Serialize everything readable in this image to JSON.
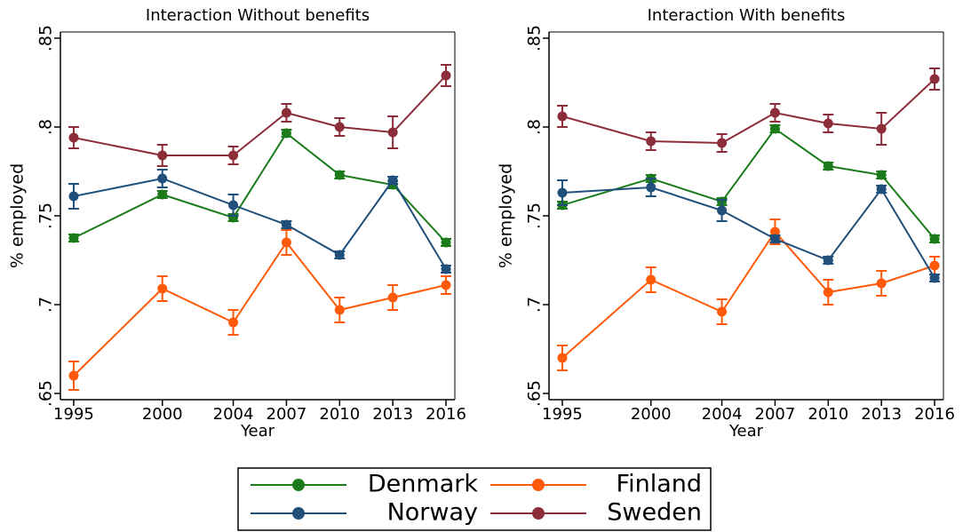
{
  "chart_data": [
    {
      "type": "line",
      "title": "Interaction Without benefits",
      "x_label": "Year",
      "y_label": "% employed",
      "x": [
        1995,
        2000,
        2004,
        2007,
        2010,
        2013,
        2016
      ],
      "xticks": [
        1995,
        2000,
        2004,
        2007,
        2010,
        2013,
        2016
      ],
      "xlim": [
        1994.25,
        2016.5
      ],
      "ylim": [
        0.6465,
        0.8535
      ],
      "yticks": [
        {
          "value": 0.65,
          "label": ".65"
        },
        {
          "value": 0.7,
          "label": ".7"
        },
        {
          "value": 0.75,
          "label": ".75"
        },
        {
          "value": 0.8,
          "label": ".8"
        },
        {
          "value": 0.85,
          "label": ".85"
        }
      ],
      "series": [
        {
          "name": "Denmark",
          "color": "#1b7b1b",
          "values": [
            0.7375,
            0.762,
            0.749,
            0.7965,
            0.773,
            0.7675,
            0.735
          ],
          "errors": [
            0.002,
            0.002,
            0.002,
            0.002,
            0.002,
            0.002,
            0.002
          ]
        },
        {
          "name": "Finland",
          "color": "#ff5a0a",
          "values": [
            0.66,
            0.709,
            0.69,
            0.735,
            0.697,
            0.704,
            0.711
          ],
          "errors": [
            0.008,
            0.007,
            0.007,
            0.007,
            0.007,
            0.007,
            0.005
          ]
        },
        {
          "name": "Norway",
          "color": "#1f4f7a",
          "values": [
            0.761,
            0.771,
            0.756,
            0.745,
            0.728,
            0.77,
            0.72
          ],
          "errors": [
            0.007,
            0.005,
            0.006,
            0.002,
            0.002,
            0.002,
            0.002
          ]
        },
        {
          "name": "Sweden",
          "color": "#8c2d3a",
          "values": [
            0.794,
            0.784,
            0.784,
            0.808,
            0.8,
            0.797,
            0.829
          ],
          "errors": [
            0.006,
            0.006,
            0.005,
            0.005,
            0.005,
            0.009,
            0.006
          ]
        }
      ]
    },
    {
      "type": "line",
      "title": "Interaction With benefits",
      "x_label": "Year",
      "y_label": "% employed",
      "x": [
        1995,
        2000,
        2004,
        2007,
        2010,
        2013,
        2016
      ],
      "xticks": [
        1995,
        2000,
        2004,
        2007,
        2010,
        2013,
        2016
      ],
      "xlim": [
        1994.25,
        2016.5
      ],
      "ylim": [
        0.6465,
        0.8535
      ],
      "yticks": [
        {
          "value": 0.65,
          "label": ".65"
        },
        {
          "value": 0.7,
          "label": ".7"
        },
        {
          "value": 0.75,
          "label": ".75"
        },
        {
          "value": 0.8,
          "label": ".8"
        },
        {
          "value": 0.85,
          "label": ".85"
        }
      ],
      "series": [
        {
          "name": "Denmark",
          "color": "#1b7b1b",
          "values": [
            0.756,
            0.771,
            0.758,
            0.799,
            0.778,
            0.773,
            0.737
          ],
          "errors": [
            0.002,
            0.002,
            0.002,
            0.002,
            0.002,
            0.002,
            0.002
          ]
        },
        {
          "name": "Finland",
          "color": "#ff5a0a",
          "values": [
            0.67,
            0.714,
            0.696,
            0.741,
            0.707,
            0.712,
            0.722
          ],
          "errors": [
            0.007,
            0.007,
            0.007,
            0.007,
            0.007,
            0.007,
            0.005
          ]
        },
        {
          "name": "Norway",
          "color": "#1f4f7a",
          "values": [
            0.763,
            0.766,
            0.753,
            0.737,
            0.725,
            0.765,
            0.715
          ],
          "errors": [
            0.007,
            0.005,
            0.006,
            0.002,
            0.002,
            0.002,
            0.002
          ]
        },
        {
          "name": "Sweden",
          "color": "#8c2d3a",
          "values": [
            0.806,
            0.792,
            0.791,
            0.808,
            0.802,
            0.799,
            0.827
          ],
          "errors": [
            0.006,
            0.005,
            0.005,
            0.005,
            0.005,
            0.009,
            0.006
          ]
        }
      ]
    }
  ]
}
